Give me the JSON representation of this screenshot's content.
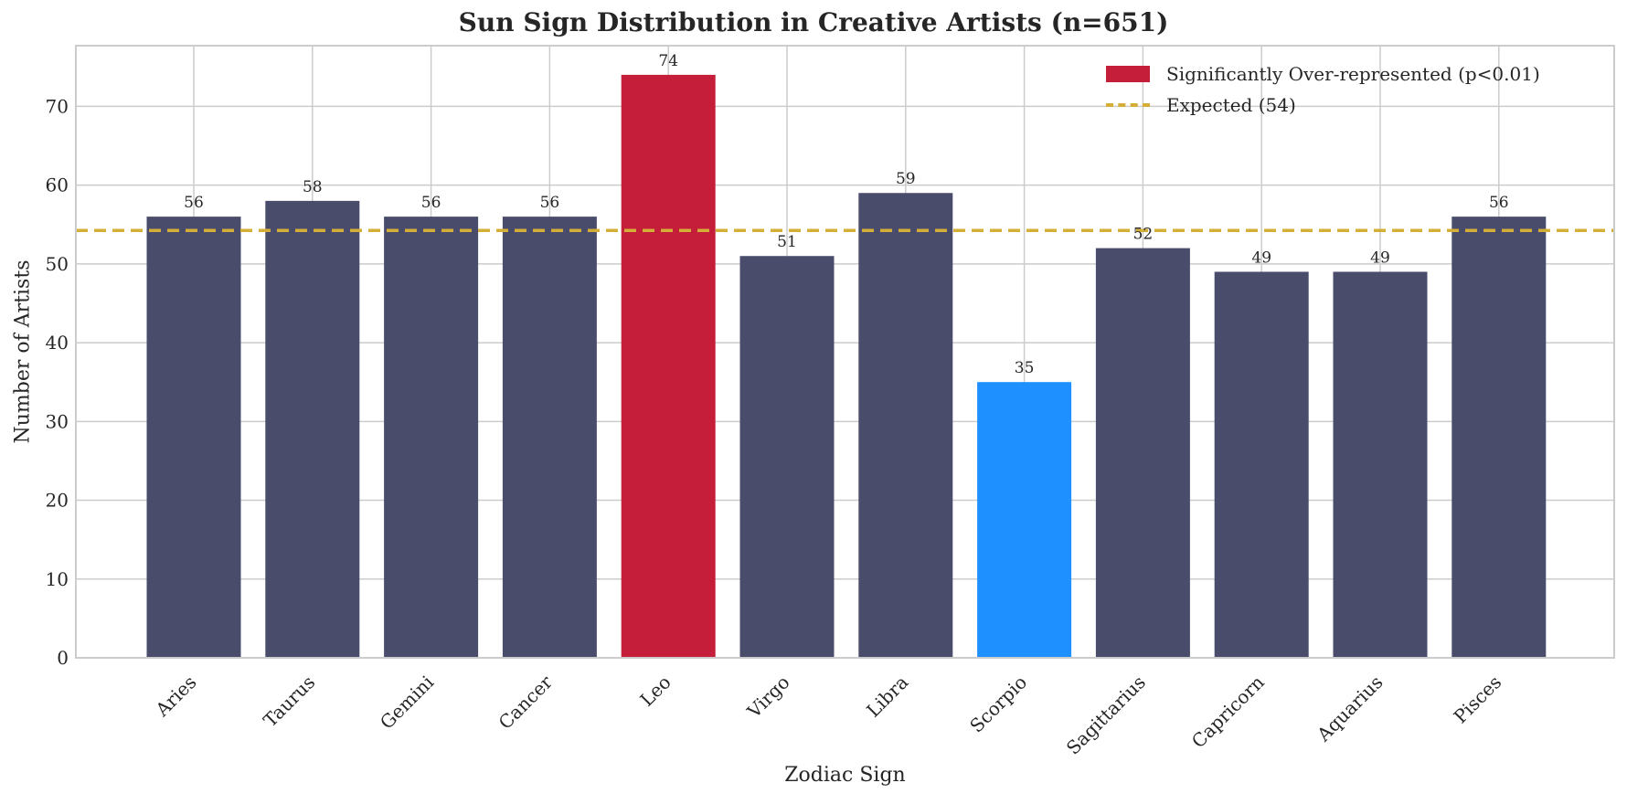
{
  "chart_data": {
    "type": "bar",
    "title": "Sun Sign Distribution in Creative Artists (n=651)",
    "xlabel": "Zodiac Sign",
    "ylabel": "Number of Artists",
    "categories": [
      "Aries",
      "Taurus",
      "Gemini",
      "Cancer",
      "Leo",
      "Virgo",
      "Libra",
      "Scorpio",
      "Sagittarius",
      "Capricorn",
      "Aquarius",
      "Pisces"
    ],
    "values": [
      56,
      58,
      56,
      56,
      74,
      51,
      59,
      35,
      52,
      49,
      49,
      56
    ],
    "bar_colors": [
      "#4a4c6b",
      "#4a4c6b",
      "#4a4c6b",
      "#4a4c6b",
      "#c41e3a",
      "#4a4c6b",
      "#4a4c6b",
      "#1e90ff",
      "#4a4c6b",
      "#4a4c6b",
      "#4a4c6b",
      "#4a4c6b"
    ],
    "data_labels": [
      "56",
      "58",
      "56",
      "56",
      "74",
      "51",
      "59",
      "35",
      "52",
      "49",
      "49",
      "56"
    ],
    "ylim": [
      0,
      77.7
    ],
    "yticks": [
      0,
      10,
      20,
      30,
      40,
      50,
      60,
      70
    ],
    "grid": true,
    "reference_line": {
      "value": 54.25,
      "label": "Expected (54)",
      "color": "#d4af37",
      "style": "dashed"
    },
    "legend": {
      "position": "upper right",
      "entries": [
        {
          "label": "Significantly Over-represented (p<0.01)",
          "color": "#c41e3a",
          "type": "patch"
        },
        {
          "label": "Expected (54)",
          "color": "#d4af37",
          "type": "dashed-line"
        }
      ]
    },
    "colors": {
      "default_bar": "#4a4c6b",
      "over": "#c41e3a",
      "under": "#1e90ff",
      "expected": "#d4af37",
      "grid": "#cccccc"
    }
  }
}
